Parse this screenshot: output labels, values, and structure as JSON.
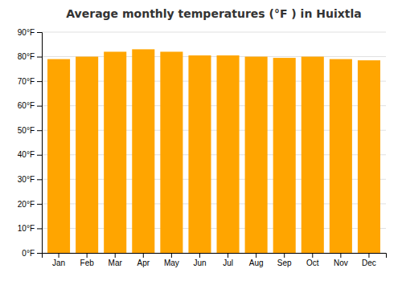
{
  "chart_data": {
    "type": "bar",
    "title": "Average monthly temperatures (°F ) in Huixtla",
    "categories": [
      "Jan",
      "Feb",
      "Mar",
      "Apr",
      "May",
      "Jun",
      "Jul",
      "Aug",
      "Sep",
      "Oct",
      "Nov",
      "Dec"
    ],
    "values": [
      79,
      80,
      82,
      83,
      82,
      80.5,
      80.5,
      80,
      79.5,
      80,
      79,
      78.5
    ],
    "color": "#FFA500",
    "ylim": [
      0,
      90
    ],
    "yticks": [
      {
        "value": 0,
        "label": "0°F"
      },
      {
        "value": 10,
        "label": "10°F"
      },
      {
        "value": 20,
        "label": "20°F"
      },
      {
        "value": 30,
        "label": "30°F"
      },
      {
        "value": 40,
        "label": "40°F"
      },
      {
        "value": 50,
        "label": "50°F"
      },
      {
        "value": 60,
        "label": "60°F"
      },
      {
        "value": 70,
        "label": "70°F"
      },
      {
        "value": 80,
        "label": "80°F"
      },
      {
        "value": 90,
        "label": "90°F"
      }
    ],
    "grid": true
  }
}
